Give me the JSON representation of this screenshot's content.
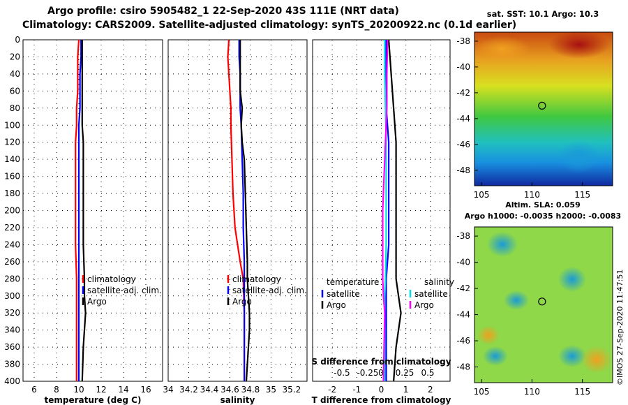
{
  "header": {
    "line1": "Argo profile: csiro 5905482_1 22-Sep-2020 43S 111E (NRT data)",
    "line2": "Climatology: CARS2009. Satellite-adjusted climatology: synTS_20200922.nc (0.1d earlier)"
  },
  "maps": {
    "sst_title": "sat. SST: 10.1 Argo: 10.3",
    "sla_title1": "Altim. SLA: 0.059",
    "sla_title2": "Argo h1000: -0.0035 h2000: -0.0083",
    "lat_ticks": [
      "-38",
      "-40",
      "-42",
      "-44",
      "-46",
      "-48"
    ],
    "lon_ticks": [
      "105",
      "110",
      "115"
    ],
    "profile_lat": -43.0,
    "profile_lon": 111.0,
    "watermark": "©IMOS 27-Sep-2020 11:47:51"
  },
  "colors": {
    "climatology": "#ff0000",
    "satellite": "#0000ff",
    "argo": "#000000",
    "sal_satellite": "#00e0e0",
    "sal_argo": "#ff00ff"
  },
  "chart_data": [
    {
      "type": "line",
      "xlabel": "temperature (deg C)",
      "ylabel": "",
      "xlim": [
        5,
        17.5
      ],
      "ylim": [
        400,
        0
      ],
      "xticks": [
        "6",
        "8",
        "10",
        "12",
        "14",
        "16"
      ],
      "yticks": [
        "0",
        "20",
        "40",
        "60",
        "80",
        "100",
        "120",
        "140",
        "160",
        "180",
        "200",
        "220",
        "240",
        "260",
        "280",
        "300",
        "320",
        "340",
        "360",
        "380",
        "400"
      ],
      "legend": [
        "climatology",
        "satellite-adj. clim.",
        "Argo"
      ],
      "series": [
        {
          "name": "climatology",
          "depth": [
            0,
            20,
            40,
            60,
            80,
            100,
            120,
            140,
            160,
            180,
            200,
            240,
            280,
            320,
            360,
            400
          ],
          "values": [
            10.0,
            9.9,
            9.9,
            9.9,
            9.8,
            9.8,
            9.7,
            9.7,
            9.7,
            9.7,
            9.7,
            9.7,
            9.8,
            9.8,
            9.8,
            9.8
          ]
        },
        {
          "name": "satellite-adj. clim.",
          "depth": [
            0,
            20,
            40,
            60,
            80,
            100,
            120,
            140,
            160,
            180,
            200,
            240,
            280,
            320,
            360,
            400
          ],
          "values": [
            10.2,
            10.2,
            10.1,
            10.1,
            10.1,
            10.0,
            10.0,
            10.0,
            10.0,
            10.0,
            10.0,
            10.0,
            10.0,
            10.0,
            10.0,
            10.0
          ]
        },
        {
          "name": "Argo",
          "depth": [
            0,
            20,
            40,
            60,
            80,
            100,
            120,
            140,
            160,
            180,
            200,
            240,
            280,
            300,
            320,
            340,
            360,
            400
          ],
          "values": [
            10.3,
            10.3,
            10.3,
            10.3,
            10.3,
            10.3,
            10.4,
            10.4,
            10.4,
            10.4,
            10.4,
            10.4,
            10.5,
            10.5,
            10.6,
            10.5,
            10.4,
            10.3
          ]
        }
      ]
    },
    {
      "type": "line",
      "xlabel": "salinity",
      "ylabel": "",
      "xlim": [
        34.0,
        35.35
      ],
      "ylim": [
        400,
        0
      ],
      "xticks": [
        "34",
        "34.2",
        "34.4",
        "34.6",
        "34.8",
        "35",
        "35.2"
      ],
      "legend": [
        "climatology",
        "satellite-adj. clim.",
        "Argo"
      ],
      "series": [
        {
          "name": "climatology",
          "depth": [
            0,
            20,
            40,
            60,
            80,
            100,
            140,
            180,
            220,
            260,
            280,
            320,
            360,
            400
          ],
          "values": [
            34.59,
            34.58,
            34.59,
            34.6,
            34.61,
            34.61,
            34.62,
            34.63,
            34.65,
            34.7,
            34.73,
            34.74,
            34.74,
            34.74
          ]
        },
        {
          "name": "satellite-adj. clim.",
          "depth": [
            0,
            20,
            40,
            60,
            80,
            100,
            140,
            180,
            220,
            260,
            280,
            320,
            360,
            400
          ],
          "values": [
            34.69,
            34.69,
            34.7,
            34.7,
            34.7,
            34.71,
            34.72,
            34.73,
            34.73,
            34.74,
            34.74,
            34.74,
            34.74,
            34.74
          ]
        },
        {
          "name": "Argo",
          "depth": [
            0,
            20,
            40,
            60,
            80,
            100,
            120,
            140,
            180,
            220,
            260,
            280,
            300,
            320,
            340,
            360,
            400
          ],
          "values": [
            34.7,
            34.7,
            34.7,
            34.7,
            34.72,
            34.71,
            34.72,
            34.74,
            34.75,
            34.76,
            34.77,
            34.77,
            34.78,
            34.79,
            34.79,
            34.78,
            34.76
          ]
        }
      ]
    },
    {
      "type": "line",
      "xlabel": "T difference from climatology",
      "xlabel_top": "S difference from climatology",
      "ylabel": "",
      "xlim": [
        -2.8,
        2.8
      ],
      "ylim": [
        400,
        0
      ],
      "xticks": [
        "-2",
        "-1",
        "0",
        "1",
        "2"
      ],
      "xticks_top": [
        "-0.5",
        "-0.25",
        "0",
        "0.25",
        "0.5"
      ],
      "legend_temperature_title": "temperature",
      "legend_salinity_title": "salinity",
      "legend_temperature": [
        "satellite",
        "Argo"
      ],
      "legend_salinity": [
        "satellite",
        "Argo"
      ],
      "series": [
        {
          "name": "temperature satellite",
          "depth": [
            0,
            40,
            80,
            120,
            160,
            200,
            240,
            280,
            320,
            360,
            400
          ],
          "values": [
            0.2,
            0.2,
            0.2,
            0.3,
            0.3,
            0.3,
            0.3,
            0.2,
            0.2,
            0.2,
            0.2
          ]
        },
        {
          "name": "temperature Argo",
          "depth": [
            0,
            40,
            80,
            120,
            160,
            200,
            240,
            280,
            300,
            320,
            360,
            400
          ],
          "values": [
            0.3,
            0.4,
            0.5,
            0.6,
            0.6,
            0.6,
            0.6,
            0.6,
            0.7,
            0.8,
            0.6,
            0.5
          ]
        },
        {
          "name": "salinity satellite",
          "depth": [
            0,
            40,
            80,
            120,
            160,
            200,
            240,
            280,
            300,
            320,
            360,
            400
          ],
          "values": [
            0.05,
            0.05,
            0.06,
            0.07,
            0.07,
            0.07,
            0.07,
            0.06,
            0.05,
            0.05,
            0.05,
            0.05
          ]
        },
        {
          "name": "salinity Argo",
          "depth": [
            0,
            40,
            80,
            120,
            160,
            200,
            240,
            280,
            300,
            320,
            360,
            400
          ],
          "values": [
            0.09,
            0.08,
            0.08,
            0.06,
            0.04,
            0.02,
            0.02,
            0.02,
            0.03,
            0.05,
            0.04,
            0.03
          ]
        }
      ]
    }
  ]
}
